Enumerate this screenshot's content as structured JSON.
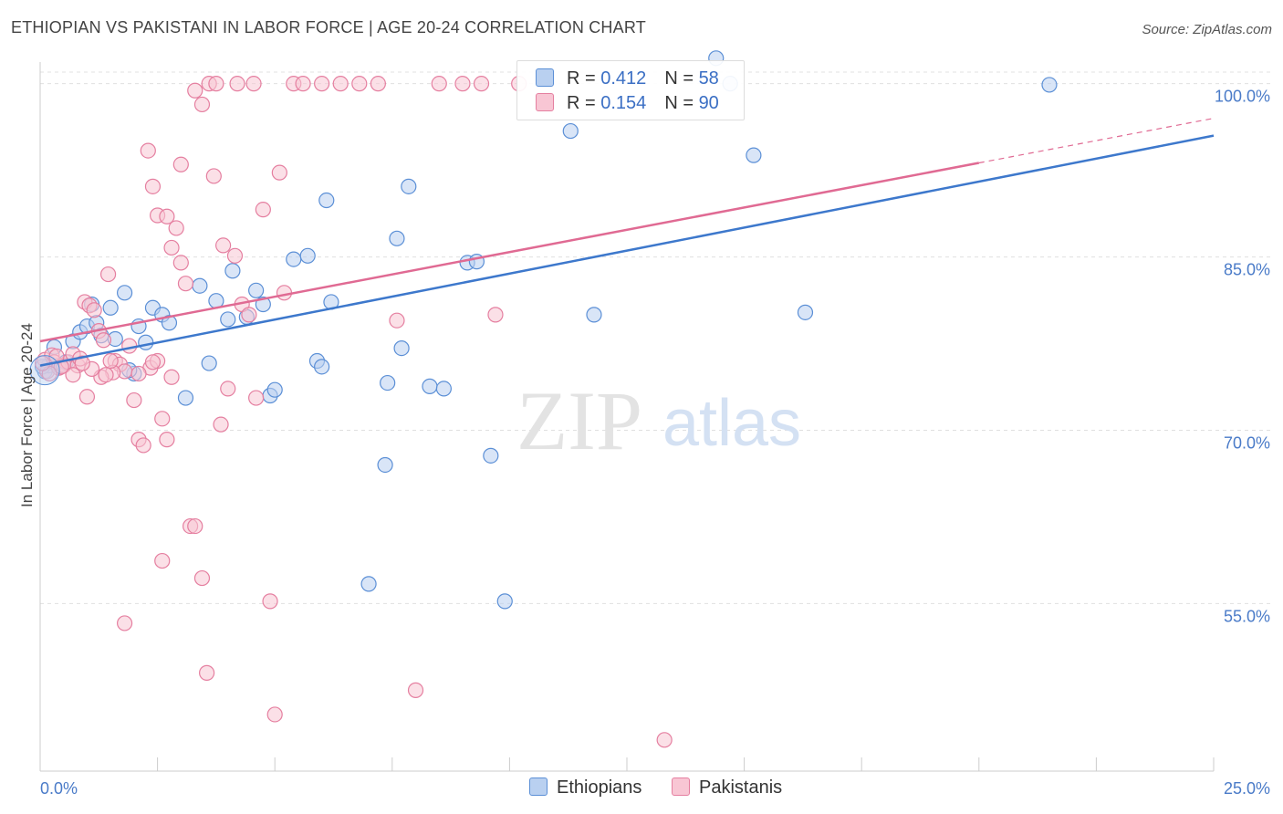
{
  "title": "ETHIOPIAN VS PAKISTANI IN LABOR FORCE | AGE 20-24 CORRELATION CHART",
  "source": "Source: ZipAtlas.com",
  "legend": {
    "r_label": "R =",
    "n_label": "N =",
    "rows": [
      {
        "name": "Ethiopians",
        "r": "0.412",
        "n": "58",
        "color": "#5b8fd6",
        "fill": "#b9d0f0"
      },
      {
        "name": "Pakistanis",
        "r": "0.154",
        "n": "90",
        "color": "#e57fa0",
        "fill": "#f8c6d4"
      }
    ]
  },
  "watermark": {
    "zip": "ZIP",
    "atlas": "atlas"
  },
  "chart_data": {
    "type": "scatter",
    "title": "ETHIOPIAN VS PAKISTANI IN LABOR FORCE | AGE 20-24 CORRELATION CHART",
    "xlabel": "",
    "ylabel": "In Labor Force | Age 20-24",
    "xlim": [
      0,
      25
    ],
    "ylim": [
      40.5,
      102.5
    ],
    "x_tick_labels": [
      "0.0%",
      "25.0%"
    ],
    "y_ticks": [
      55,
      70,
      85,
      100
    ],
    "y_tick_labels": [
      "55.0%",
      "70.0%",
      "85.0%",
      "100.0%"
    ],
    "grid": true,
    "series": [
      {
        "name": "Ethiopians",
        "color": "#5b8fd6",
        "fill": "#b9d0f0",
        "trend": {
          "x": [
            0,
            25
          ],
          "y": [
            75.6,
            95.5
          ],
          "dashed_from": null
        },
        "points": [
          [
            0.1,
            75.1
          ],
          [
            0.18,
            75.6
          ],
          [
            0.3,
            77.2
          ],
          [
            0.4,
            75.6
          ],
          [
            0.55,
            75.9
          ],
          [
            0.7,
            77.7
          ],
          [
            0.85,
            78.5
          ],
          [
            1.0,
            79.0
          ],
          [
            1.1,
            80.9
          ],
          [
            1.2,
            79.3
          ],
          [
            1.3,
            78.2
          ],
          [
            1.5,
            80.6
          ],
          [
            1.6,
            77.9
          ],
          [
            1.8,
            81.9
          ],
          [
            2.0,
            74.9
          ],
          [
            2.1,
            79.0
          ],
          [
            2.25,
            77.6
          ],
          [
            2.4,
            80.6
          ],
          [
            2.6,
            80.0
          ],
          [
            2.75,
            79.3
          ],
          [
            3.1,
            72.8
          ],
          [
            3.4,
            82.5
          ],
          [
            3.75,
            81.2
          ],
          [
            4.1,
            83.8
          ],
          [
            4.4,
            79.8
          ],
          [
            4.6,
            82.1
          ],
          [
            4.75,
            80.9
          ],
          [
            4.9,
            73.0
          ],
          [
            5.0,
            73.5
          ],
          [
            5.4,
            84.8
          ],
          [
            5.7,
            85.1
          ],
          [
            5.9,
            76.0
          ],
          [
            6.1,
            89.9
          ],
          [
            6.2,
            81.1
          ],
          [
            7.0,
            56.7
          ],
          [
            7.4,
            74.1
          ],
          [
            7.35,
            67.0
          ],
          [
            7.6,
            86.6
          ],
          [
            7.7,
            77.1
          ],
          [
            7.85,
            91.1
          ],
          [
            8.3,
            73.8
          ],
          [
            8.6,
            73.6
          ],
          [
            9.1,
            84.5
          ],
          [
            9.3,
            84.6
          ],
          [
            9.6,
            67.8
          ],
          [
            9.9,
            55.2
          ],
          [
            11.3,
            95.9
          ],
          [
            11.8,
            80.0
          ],
          [
            14.4,
            102.2
          ],
          [
            14.7,
            100.0
          ],
          [
            15.2,
            93.8
          ],
          [
            16.3,
            80.2
          ],
          [
            21.5,
            99.9
          ],
          [
            0.05,
            75.5
          ],
          [
            1.9,
            75.2
          ],
          [
            3.6,
            75.8
          ],
          [
            6.0,
            75.5
          ],
          [
            4.0,
            79.6
          ]
        ]
      },
      {
        "name": "Pakistanis",
        "color": "#e57fa0",
        "fill": "#f8c6d4",
        "trend": {
          "x": [
            0,
            25
          ],
          "y": [
            77.7,
            97.0
          ],
          "dashed_from": 20.0
        },
        "points": [
          [
            0.1,
            76.1
          ],
          [
            0.15,
            75.1
          ],
          [
            0.25,
            76.5
          ],
          [
            0.3,
            75.9
          ],
          [
            0.4,
            75.4
          ],
          [
            0.5,
            75.6
          ],
          [
            0.6,
            75.9
          ],
          [
            0.7,
            76.6
          ],
          [
            0.8,
            75.6
          ],
          [
            0.85,
            76.2
          ],
          [
            0.95,
            81.1
          ],
          [
            1.05,
            80.8
          ],
          [
            1.15,
            80.4
          ],
          [
            1.25,
            78.6
          ],
          [
            1.35,
            77.8
          ],
          [
            1.45,
            83.5
          ],
          [
            1.6,
            76.0
          ],
          [
            1.7,
            75.7
          ],
          [
            1.8,
            75.1
          ],
          [
            1.9,
            77.3
          ],
          [
            2.0,
            72.6
          ],
          [
            2.1,
            69.2
          ],
          [
            2.2,
            68.7
          ],
          [
            2.35,
            75.4
          ],
          [
            2.5,
            76.0
          ],
          [
            2.6,
            71.0
          ],
          [
            2.7,
            69.2
          ],
          [
            2.8,
            74.6
          ],
          [
            2.9,
            87.5
          ],
          [
            3.0,
            84.5
          ],
          [
            3.1,
            82.7
          ],
          [
            3.2,
            61.7
          ],
          [
            3.3,
            61.7
          ],
          [
            3.45,
            57.2
          ],
          [
            3.55,
            49.0
          ],
          [
            3.7,
            92.0
          ],
          [
            3.85,
            70.5
          ],
          [
            4.0,
            73.6
          ],
          [
            4.15,
            85.1
          ],
          [
            4.3,
            80.9
          ],
          [
            4.45,
            80.0
          ],
          [
            4.6,
            72.8
          ],
          [
            4.75,
            89.1
          ],
          [
            4.9,
            55.2
          ],
          [
            5.0,
            45.4
          ],
          [
            5.2,
            81.9
          ],
          [
            5.4,
            100.0
          ],
          [
            5.6,
            100.0
          ],
          [
            6.0,
            100.0
          ],
          [
            6.4,
            100.0
          ],
          [
            6.8,
            100.0
          ],
          [
            7.2,
            100.0
          ],
          [
            7.6,
            79.5
          ],
          [
            8.0,
            47.5
          ],
          [
            8.5,
            100.0
          ],
          [
            9.0,
            100.0
          ],
          [
            9.4,
            100.0
          ],
          [
            9.7,
            80.0
          ],
          [
            10.2,
            100.0
          ],
          [
            13.3,
            43.2
          ],
          [
            2.3,
            94.2
          ],
          [
            2.4,
            91.1
          ],
          [
            2.5,
            88.6
          ],
          [
            2.7,
            88.5
          ],
          [
            2.8,
            85.8
          ],
          [
            3.0,
            93.0
          ],
          [
            3.3,
            99.4
          ],
          [
            3.45,
            98.2
          ],
          [
            3.6,
            100.0
          ],
          [
            3.75,
            100.0
          ],
          [
            4.2,
            100.0
          ],
          [
            4.55,
            100.0
          ],
          [
            5.1,
            92.3
          ],
          [
            3.9,
            86.0
          ],
          [
            2.6,
            58.7
          ],
          [
            1.8,
            53.3
          ],
          [
            1.55,
            75.0
          ],
          [
            1.3,
            74.6
          ],
          [
            1.0,
            72.9
          ],
          [
            0.7,
            74.8
          ],
          [
            0.45,
            75.5
          ],
          [
            0.35,
            76.4
          ],
          [
            0.2,
            74.9
          ],
          [
            0.05,
            75.8
          ],
          [
            1.1,
            75.3
          ],
          [
            1.5,
            76.0
          ],
          [
            2.1,
            74.9
          ],
          [
            2.4,
            75.9
          ],
          [
            1.4,
            74.8
          ],
          [
            0.9,
            75.8
          ]
        ]
      }
    ]
  }
}
